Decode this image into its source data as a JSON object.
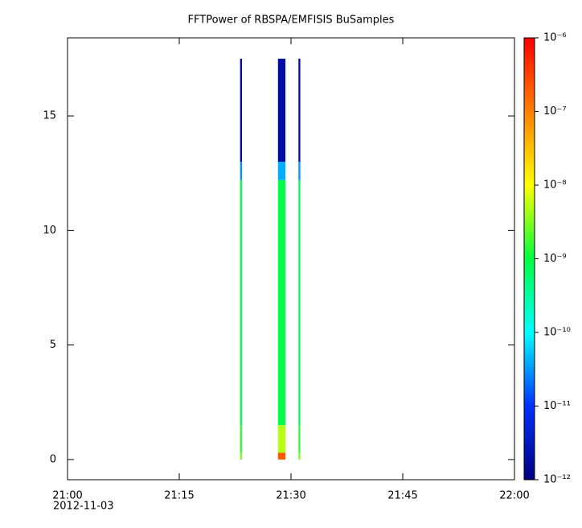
{
  "chart_data": {
    "type": "spectrogram",
    "title": "FFTPower of RBSPA/EMFISIS  BuSamples",
    "date_label": "2012-11-03",
    "xlim": [
      "2012-11-03T21:00:00",
      "2012-11-03T22:00:00"
    ],
    "xticks": [
      {
        "value": "2012-11-03T21:00:00",
        "label": "21:00"
      },
      {
        "value": "2012-11-03T21:15:00",
        "label": "21:15"
      },
      {
        "value": "2012-11-03T21:30:00",
        "label": "21:30"
      },
      {
        "value": "2012-11-03T21:45:00",
        "label": "21:45"
      },
      {
        "value": "2012-11-03T22:00:00",
        "label": "22:00"
      }
    ],
    "ylim": [
      -0.88,
      18.41
    ],
    "yticks": [
      0,
      5,
      10,
      15
    ],
    "freq_bins": [
      0,
      0.3,
      1.5,
      12.2,
      13,
      17.5
    ],
    "columns": [
      {
        "start": "2012-11-03T21:23:10",
        "end": "2012-11-03T21:23:25",
        "values": [
          3e-09,
          1.5e-09,
          8e-10,
          3e-11,
          2e-12
        ]
      },
      {
        "start": "2012-11-03T21:28:15",
        "end": "2012-11-03T21:29:15",
        "values": [
          2e-07,
          5e-09,
          9e-10,
          4e-11,
          2e-12
        ]
      },
      {
        "start": "2012-11-03T21:31:00",
        "end": "2012-11-03T21:31:15",
        "values": [
          3e-09,
          1.5e-09,
          8e-10,
          3e-11,
          2e-12
        ]
      }
    ],
    "colorbar": {
      "log": true,
      "lim": [
        1e-12,
        1e-06
      ],
      "ticks": [
        {
          "value": 1e-06,
          "label": "10⁻⁶"
        },
        {
          "value": 1e-07,
          "label": "10⁻⁷"
        },
        {
          "value": 1e-08,
          "label": "10⁻⁸"
        },
        {
          "value": 1e-09,
          "label": "10⁻⁹"
        },
        {
          "value": 1e-10,
          "label": "10⁻¹⁰"
        },
        {
          "value": 1e-11,
          "label": "10⁻¹¹"
        },
        {
          "value": 1e-12,
          "label": "10⁻¹²"
        }
      ],
      "colors": [
        "#00007f",
        "#0030ff",
        "#00ffff",
        "#00ff40",
        "#ffff00",
        "#ff8000",
        "#ff0000"
      ]
    }
  }
}
